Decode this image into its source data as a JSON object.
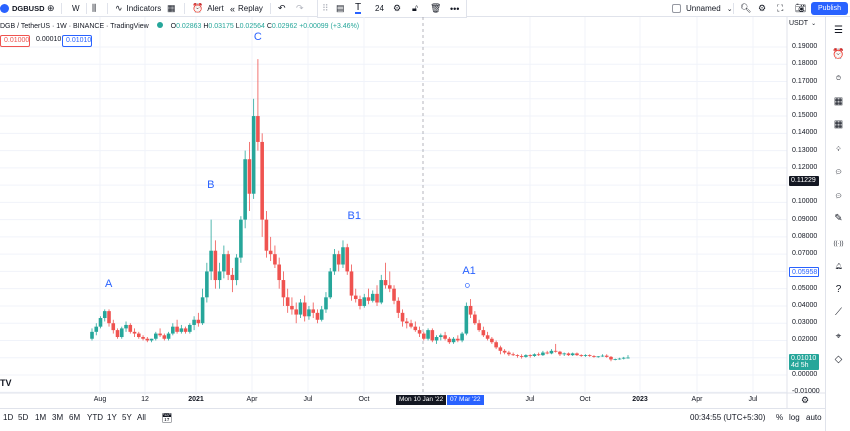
{
  "topbar": {
    "symbol": "DGBUSD",
    "interval": "W",
    "indicators": "Indicators",
    "alert": "Alert",
    "replay": "Replay",
    "font_size": "24",
    "layout_name": "Unnamed",
    "publish": "Publish"
  },
  "legend": {
    "title": "DGB / TetherUS · 1W · BINANCE · TradingView",
    "o_label": "O",
    "o": "0.02863",
    "h_label": "H",
    "h": "0.03175",
    "l_label": "L",
    "l": "0.02564",
    "c_label": "C",
    "c": "0.02962",
    "change": "+0.00099 (+3.46%)",
    "bid": "0.01000",
    "spread": "0.00010",
    "ask": "0.01010"
  },
  "price_axis": {
    "currency": "USDT",
    "labels": [
      "0.19000",
      "0.18000",
      "0.17000",
      "0.16000",
      "0.15000",
      "0.14000",
      "0.13000",
      "0.12000",
      "0.11000",
      "0.10000",
      "0.09000",
      "0.08000",
      "0.07000",
      "0.06000",
      "0.05000",
      "0.04000",
      "0.03000",
      "0.02000",
      "0.01000",
      "0.00000",
      "-0.01000"
    ],
    "crosshair_price": "0.11229",
    "last_price_tag": "0.05958",
    "current_price": "0.01010",
    "countdown": "4d 5h"
  },
  "time_axis": {
    "labels": [
      "Aug",
      "12",
      "2021",
      "Apr",
      "Jul",
      "Oct",
      "Jul",
      "Oct",
      "2023",
      "Apr",
      "Jul"
    ],
    "crosshair_date": "Mon 10 Jan '22",
    "selection_date": "07 Mar '22"
  },
  "waves": [
    "A",
    "B",
    "C",
    "B1",
    "A1"
  ],
  "bottombar": {
    "ranges": [
      "1D",
      "5D",
      "1M",
      "3M",
      "6M",
      "YTD",
      "1Y",
      "5Y",
      "All"
    ],
    "clock": "00:34:55 (UTC+5:30)",
    "percent": "%",
    "log": "log",
    "auto": "auto"
  },
  "colors": {
    "up": "#26a69a",
    "down": "#ef5350",
    "accent": "#2962ff",
    "wave_label": "#2962ff",
    "text": "#131722",
    "crosshair_tag": "#131722"
  },
  "icons": {
    "sidebar": [
      "watchlist-icon",
      "alerts-icon",
      "clock-icon",
      "calendar-icon",
      "grid-icon",
      "lightbulb-icon",
      "chat-icon",
      "chats-icon",
      "pencil-icon",
      "broadcast-icon",
      "bell-icon",
      "help-icon",
      "trend-icon",
      "crosshair-icon",
      "layers-icon"
    ]
  },
  "chart_data": {
    "type": "candlestick",
    "ylim": [
      -0.01,
      0.195
    ],
    "candles": [
      {
        "d": "2020-07-06",
        "o": 0.021,
        "h": 0.027,
        "l": 0.02,
        "c": 0.025
      },
      {
        "d": "2020-07-13",
        "o": 0.025,
        "h": 0.03,
        "l": 0.023,
        "c": 0.028
      },
      {
        "d": "2020-07-20",
        "o": 0.028,
        "h": 0.034,
        "l": 0.027,
        "c": 0.033
      },
      {
        "d": "2020-07-27",
        "o": 0.033,
        "h": 0.038,
        "l": 0.031,
        "c": 0.037
      },
      {
        "d": "2020-08-03",
        "o": 0.037,
        "h": 0.038,
        "l": 0.028,
        "c": 0.03
      },
      {
        "d": "2020-08-10",
        "o": 0.03,
        "h": 0.032,
        "l": 0.024,
        "c": 0.026
      },
      {
        "d": "2020-08-17",
        "o": 0.026,
        "h": 0.027,
        "l": 0.021,
        "c": 0.022
      },
      {
        "d": "2020-08-24",
        "o": 0.022,
        "h": 0.028,
        "l": 0.021,
        "c": 0.027
      },
      {
        "d": "2020-08-31",
        "o": 0.027,
        "h": 0.031,
        "l": 0.025,
        "c": 0.029
      },
      {
        "d": "2020-09-07",
        "o": 0.029,
        "h": 0.03,
        "l": 0.024,
        "c": 0.025
      },
      {
        "d": "2020-09-14",
        "o": 0.025,
        "h": 0.027,
        "l": 0.022,
        "c": 0.024
      },
      {
        "d": "2020-09-21",
        "o": 0.024,
        "h": 0.025,
        "l": 0.021,
        "c": 0.022
      },
      {
        "d": "2020-09-28",
        "o": 0.022,
        "h": 0.023,
        "l": 0.02,
        "c": 0.021
      },
      {
        "d": "2020-10-05",
        "o": 0.021,
        "h": 0.022,
        "l": 0.019,
        "c": 0.02
      },
      {
        "d": "2020-10-12",
        "o": 0.02,
        "h": 0.021,
        "l": 0.019,
        "c": 0.021
      },
      {
        "d": "2020-10-19",
        "o": 0.021,
        "h": 0.025,
        "l": 0.02,
        "c": 0.024
      },
      {
        "d": "2020-10-26",
        "o": 0.024,
        "h": 0.027,
        "l": 0.022,
        "c": 0.023
      },
      {
        "d": "2020-11-02",
        "o": 0.023,
        "h": 0.024,
        "l": 0.02,
        "c": 0.021
      },
      {
        "d": "2020-11-09",
        "o": 0.021,
        "h": 0.025,
        "l": 0.02,
        "c": 0.024
      },
      {
        "d": "2020-11-16",
        "o": 0.024,
        "h": 0.03,
        "l": 0.023,
        "c": 0.028
      },
      {
        "d": "2020-11-23",
        "o": 0.028,
        "h": 0.032,
        "l": 0.024,
        "c": 0.025
      },
      {
        "d": "2020-11-30",
        "o": 0.025,
        "h": 0.029,
        "l": 0.024,
        "c": 0.027
      },
      {
        "d": "2020-12-07",
        "o": 0.027,
        "h": 0.028,
        "l": 0.024,
        "c": 0.025
      },
      {
        "d": "2020-12-14",
        "o": 0.025,
        "h": 0.03,
        "l": 0.024,
        "c": 0.029
      },
      {
        "d": "2020-12-21",
        "o": 0.029,
        "h": 0.034,
        "l": 0.026,
        "c": 0.032
      },
      {
        "d": "2020-12-28",
        "o": 0.032,
        "h": 0.036,
        "l": 0.028,
        "c": 0.03
      },
      {
        "d": "2021-01-04",
        "o": 0.03,
        "h": 0.05,
        "l": 0.029,
        "c": 0.045
      },
      {
        "d": "2021-01-11",
        "o": 0.045,
        "h": 0.065,
        "l": 0.042,
        "c": 0.06
      },
      {
        "d": "2021-01-18",
        "o": 0.06,
        "h": 0.09,
        "l": 0.055,
        "c": 0.072
      },
      {
        "d": "2021-01-25",
        "o": 0.072,
        "h": 0.078,
        "l": 0.05,
        "c": 0.055
      },
      {
        "d": "2021-02-01",
        "o": 0.055,
        "h": 0.065,
        "l": 0.05,
        "c": 0.06
      },
      {
        "d": "2021-02-08",
        "o": 0.06,
        "h": 0.075,
        "l": 0.056,
        "c": 0.07
      },
      {
        "d": "2021-02-15",
        "o": 0.07,
        "h": 0.072,
        "l": 0.055,
        "c": 0.058
      },
      {
        "d": "2021-02-22",
        "o": 0.058,
        "h": 0.062,
        "l": 0.048,
        "c": 0.055
      },
      {
        "d": "2021-03-01",
        "o": 0.055,
        "h": 0.07,
        "l": 0.052,
        "c": 0.068
      },
      {
        "d": "2021-03-08",
        "o": 0.068,
        "h": 0.092,
        "l": 0.065,
        "c": 0.09
      },
      {
        "d": "2021-03-15",
        "o": 0.09,
        "h": 0.13,
        "l": 0.085,
        "c": 0.125
      },
      {
        "d": "2021-03-22",
        "o": 0.125,
        "h": 0.135,
        "l": 0.095,
        "c": 0.105
      },
      {
        "d": "2021-03-29",
        "o": 0.105,
        "h": 0.16,
        "l": 0.102,
        "c": 0.15
      },
      {
        "d": "2021-04-05",
        "o": 0.15,
        "h": 0.183,
        "l": 0.13,
        "c": 0.135
      },
      {
        "d": "2021-04-12",
        "o": 0.135,
        "h": 0.14,
        "l": 0.08,
        "c": 0.09
      },
      {
        "d": "2021-04-19",
        "o": 0.09,
        "h": 0.095,
        "l": 0.068,
        "c": 0.072
      },
      {
        "d": "2021-04-26",
        "o": 0.072,
        "h": 0.08,
        "l": 0.066,
        "c": 0.07
      },
      {
        "d": "2021-05-03",
        "o": 0.07,
        "h": 0.075,
        "l": 0.062,
        "c": 0.064
      },
      {
        "d": "2021-05-10",
        "o": 0.064,
        "h": 0.068,
        "l": 0.05,
        "c": 0.055
      },
      {
        "d": "2021-05-17",
        "o": 0.055,
        "h": 0.06,
        "l": 0.04,
        "c": 0.045
      },
      {
        "d": "2021-05-24",
        "o": 0.045,
        "h": 0.05,
        "l": 0.036,
        "c": 0.04
      },
      {
        "d": "2021-05-31",
        "o": 0.04,
        "h": 0.045,
        "l": 0.035,
        "c": 0.038
      },
      {
        "d": "2021-06-07",
        "o": 0.038,
        "h": 0.042,
        "l": 0.03,
        "c": 0.035
      },
      {
        "d": "2021-06-14",
        "o": 0.035,
        "h": 0.044,
        "l": 0.033,
        "c": 0.042
      },
      {
        "d": "2021-06-21",
        "o": 0.042,
        "h": 0.046,
        "l": 0.031,
        "c": 0.034
      },
      {
        "d": "2021-06-28",
        "o": 0.034,
        "h": 0.04,
        "l": 0.032,
        "c": 0.038
      },
      {
        "d": "2021-07-05",
        "o": 0.038,
        "h": 0.042,
        "l": 0.033,
        "c": 0.036
      },
      {
        "d": "2021-07-12",
        "o": 0.036,
        "h": 0.038,
        "l": 0.03,
        "c": 0.032
      },
      {
        "d": "2021-07-19",
        "o": 0.032,
        "h": 0.04,
        "l": 0.031,
        "c": 0.038
      },
      {
        "d": "2021-07-26",
        "o": 0.038,
        "h": 0.048,
        "l": 0.036,
        "c": 0.045
      },
      {
        "d": "2021-08-02",
        "o": 0.045,
        "h": 0.062,
        "l": 0.044,
        "c": 0.06
      },
      {
        "d": "2021-08-09",
        "o": 0.06,
        "h": 0.073,
        "l": 0.058,
        "c": 0.07
      },
      {
        "d": "2021-08-16",
        "o": 0.07,
        "h": 0.072,
        "l": 0.06,
        "c": 0.064
      },
      {
        "d": "2021-08-23",
        "o": 0.064,
        "h": 0.078,
        "l": 0.062,
        "c": 0.074
      },
      {
        "d": "2021-08-30",
        "o": 0.074,
        "h": 0.076,
        "l": 0.058,
        "c": 0.06
      },
      {
        "d": "2021-09-06",
        "o": 0.06,
        "h": 0.064,
        "l": 0.043,
        "c": 0.046
      },
      {
        "d": "2021-09-13",
        "o": 0.046,
        "h": 0.05,
        "l": 0.042,
        "c": 0.044
      },
      {
        "d": "2021-09-20",
        "o": 0.044,
        "h": 0.046,
        "l": 0.038,
        "c": 0.04
      },
      {
        "d": "2021-09-27",
        "o": 0.04,
        "h": 0.047,
        "l": 0.039,
        "c": 0.045
      },
      {
        "d": "2021-10-04",
        "o": 0.045,
        "h": 0.05,
        "l": 0.041,
        "c": 0.043
      },
      {
        "d": "2021-10-11",
        "o": 0.043,
        "h": 0.049,
        "l": 0.042,
        "c": 0.047
      },
      {
        "d": "2021-10-18",
        "o": 0.047,
        "h": 0.052,
        "l": 0.04,
        "c": 0.042
      },
      {
        "d": "2021-10-25",
        "o": 0.042,
        "h": 0.058,
        "l": 0.041,
        "c": 0.055
      },
      {
        "d": "2021-11-01",
        "o": 0.055,
        "h": 0.065,
        "l": 0.05,
        "c": 0.052
      },
      {
        "d": "2021-11-08",
        "o": 0.052,
        "h": 0.06,
        "l": 0.048,
        "c": 0.05
      },
      {
        "d": "2021-11-15",
        "o": 0.05,
        "h": 0.052,
        "l": 0.041,
        "c": 0.043
      },
      {
        "d": "2021-11-22",
        "o": 0.043,
        "h": 0.045,
        "l": 0.033,
        "c": 0.036
      },
      {
        "d": "2021-11-29",
        "o": 0.036,
        "h": 0.038,
        "l": 0.028,
        "c": 0.031
      },
      {
        "d": "2021-12-06",
        "o": 0.031,
        "h": 0.033,
        "l": 0.027,
        "c": 0.03
      },
      {
        "d": "2021-12-13",
        "o": 0.03,
        "h": 0.032,
        "l": 0.027,
        "c": 0.028
      },
      {
        "d": "2021-12-20",
        "o": 0.028,
        "h": 0.031,
        "l": 0.025,
        "c": 0.026
      },
      {
        "d": "2021-12-27",
        "o": 0.026,
        "h": 0.028,
        "l": 0.022,
        "c": 0.024
      },
      {
        "d": "2022-01-03",
        "o": 0.024,
        "h": 0.025,
        "l": 0.02,
        "c": 0.021
      },
      {
        "d": "2022-01-10",
        "o": 0.021,
        "h": 0.027,
        "l": 0.02,
        "c": 0.026
      },
      {
        "d": "2022-01-17",
        "o": 0.026,
        "h": 0.027,
        "l": 0.019,
        "c": 0.02
      },
      {
        "d": "2022-01-24",
        "o": 0.02,
        "h": 0.023,
        "l": 0.018,
        "c": 0.022
      },
      {
        "d": "2022-01-31",
        "o": 0.022,
        "h": 0.024,
        "l": 0.02,
        "c": 0.023
      },
      {
        "d": "2022-02-07",
        "o": 0.023,
        "h": 0.025,
        "l": 0.02,
        "c": 0.021
      },
      {
        "d": "2022-02-14",
        "o": 0.021,
        "h": 0.022,
        "l": 0.018,
        "c": 0.019
      },
      {
        "d": "2022-02-21",
        "o": 0.019,
        "h": 0.022,
        "l": 0.018,
        "c": 0.021
      },
      {
        "d": "2022-02-28",
        "o": 0.021,
        "h": 0.023,
        "l": 0.019,
        "c": 0.02
      },
      {
        "d": "2022-03-07",
        "o": 0.02,
        "h": 0.025,
        "l": 0.019,
        "c": 0.024
      },
      {
        "d": "2022-03-14",
        "o": 0.024,
        "h": 0.042,
        "l": 0.023,
        "c": 0.04
      },
      {
        "d": "2022-03-21",
        "o": 0.04,
        "h": 0.044,
        "l": 0.033,
        "c": 0.035
      },
      {
        "d": "2022-03-28",
        "o": 0.035,
        "h": 0.037,
        "l": 0.029,
        "c": 0.03
      },
      {
        "d": "2022-04-04",
        "o": 0.03,
        "h": 0.032,
        "l": 0.025,
        "c": 0.026
      },
      {
        "d": "2022-04-11",
        "o": 0.026,
        "h": 0.028,
        "l": 0.022,
        "c": 0.023
      },
      {
        "d": "2022-04-18",
        "o": 0.023,
        "h": 0.025,
        "l": 0.02,
        "c": 0.021
      },
      {
        "d": "2022-04-25",
        "o": 0.021,
        "h": 0.022,
        "l": 0.018,
        "c": 0.019
      },
      {
        "d": "2022-05-02",
        "o": 0.019,
        "h": 0.02,
        "l": 0.015,
        "c": 0.016
      },
      {
        "d": "2022-05-09",
        "o": 0.016,
        "h": 0.017,
        "l": 0.012,
        "c": 0.014
      },
      {
        "d": "2022-05-16",
        "o": 0.014,
        "h": 0.015,
        "l": 0.012,
        "c": 0.013
      },
      {
        "d": "2022-05-23",
        "o": 0.013,
        "h": 0.014,
        "l": 0.011,
        "c": 0.012
      },
      {
        "d": "2022-05-30",
        "o": 0.012,
        "h": 0.013,
        "l": 0.011,
        "c": 0.0115
      },
      {
        "d": "2022-06-06",
        "o": 0.0115,
        "h": 0.012,
        "l": 0.01,
        "c": 0.011
      },
      {
        "d": "2022-06-13",
        "o": 0.011,
        "h": 0.012,
        "l": 0.0095,
        "c": 0.0105
      },
      {
        "d": "2022-06-20",
        "o": 0.0105,
        "h": 0.012,
        "l": 0.01,
        "c": 0.0115
      },
      {
        "d": "2022-06-27",
        "o": 0.0115,
        "h": 0.012,
        "l": 0.01,
        "c": 0.011
      },
      {
        "d": "2022-07-04",
        "o": 0.011,
        "h": 0.0125,
        "l": 0.0105,
        "c": 0.012
      },
      {
        "d": "2022-07-11",
        "o": 0.012,
        "h": 0.013,
        "l": 0.011,
        "c": 0.0115
      },
      {
        "d": "2022-07-18",
        "o": 0.0115,
        "h": 0.014,
        "l": 0.011,
        "c": 0.013
      },
      {
        "d": "2022-07-25",
        "o": 0.013,
        "h": 0.014,
        "l": 0.012,
        "c": 0.0125
      },
      {
        "d": "2022-08-01",
        "o": 0.0125,
        "h": 0.015,
        "l": 0.012,
        "c": 0.014
      },
      {
        "d": "2022-08-08",
        "o": 0.014,
        "h": 0.018,
        "l": 0.013,
        "c": 0.0135
      },
      {
        "d": "2022-08-15",
        "o": 0.0135,
        "h": 0.014,
        "l": 0.011,
        "c": 0.012
      },
      {
        "d": "2022-08-22",
        "o": 0.012,
        "h": 0.013,
        "l": 0.011,
        "c": 0.0125
      },
      {
        "d": "2022-08-29",
        "o": 0.0125,
        "h": 0.013,
        "l": 0.011,
        "c": 0.0115
      },
      {
        "d": "2022-09-05",
        "o": 0.0115,
        "h": 0.013,
        "l": 0.011,
        "c": 0.0125
      },
      {
        "d": "2022-09-12",
        "o": 0.0125,
        "h": 0.013,
        "l": 0.011,
        "c": 0.0115
      },
      {
        "d": "2022-09-19",
        "o": 0.0115,
        "h": 0.012,
        "l": 0.0105,
        "c": 0.011
      },
      {
        "d": "2022-09-26",
        "o": 0.011,
        "h": 0.012,
        "l": 0.0105,
        "c": 0.0115
      },
      {
        "d": "2022-10-03",
        "o": 0.0115,
        "h": 0.012,
        "l": 0.0105,
        "c": 0.011
      },
      {
        "d": "2022-10-10",
        "o": 0.011,
        "h": 0.0115,
        "l": 0.01,
        "c": 0.0105
      },
      {
        "d": "2022-10-17",
        "o": 0.0105,
        "h": 0.011,
        "l": 0.01,
        "c": 0.0108
      },
      {
        "d": "2022-10-24",
        "o": 0.0108,
        "h": 0.012,
        "l": 0.0105,
        "c": 0.0112
      },
      {
        "d": "2022-10-31",
        "o": 0.0112,
        "h": 0.012,
        "l": 0.01,
        "c": 0.0105
      },
      {
        "d": "2022-11-07",
        "o": 0.0105,
        "h": 0.011,
        "l": 0.008,
        "c": 0.009
      },
      {
        "d": "2022-11-14",
        "o": 0.009,
        "h": 0.0095,
        "l": 0.0085,
        "c": 0.0092
      },
      {
        "d": "2022-11-21",
        "o": 0.0092,
        "h": 0.01,
        "l": 0.0088,
        "c": 0.0095
      },
      {
        "d": "2022-11-28",
        "o": 0.0095,
        "h": 0.0105,
        "l": 0.009,
        "c": 0.01
      },
      {
        "d": "2022-12-05",
        "o": 0.01,
        "h": 0.0115,
        "l": 0.0095,
        "c": 0.0101
      }
    ],
    "waves": [
      {
        "label": "A",
        "d": "2020-08-03",
        "price": 0.053
      },
      {
        "label": "B",
        "d": "2021-01-18",
        "price": 0.11
      },
      {
        "label": "C",
        "d": "2021-04-05",
        "price": 0.196
      },
      {
        "label": "B1",
        "d": "2021-09-06",
        "price": 0.092
      },
      {
        "label": "A1",
        "d": "2022-03-14",
        "price": 0.06
      }
    ]
  }
}
